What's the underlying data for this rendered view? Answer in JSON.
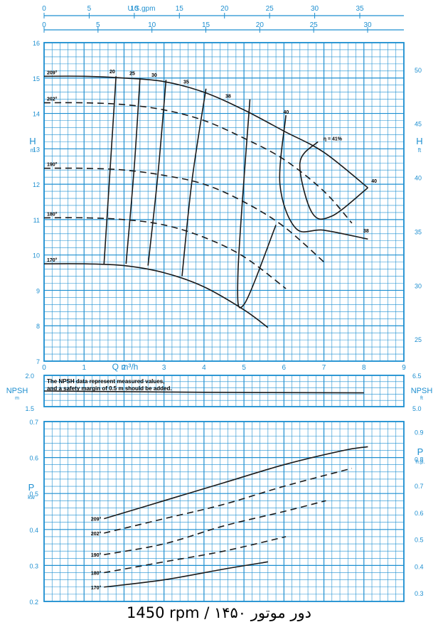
{
  "footer": "1450 rpm / دور موتور ۱۴۵۰",
  "colors": {
    "grid": "#1e8fd0",
    "curve": "#1a1a1a",
    "background": "#ffffff"
  },
  "chart_data": [
    {
      "type": "line",
      "name": "head-capacity",
      "top_axis_label": "U.S.gpm",
      "top_axis_ticks": [
        "0",
        "5",
        "10",
        "15",
        "20",
        "25",
        "30",
        "35"
      ],
      "metric_ticks": [
        "0",
        "5",
        "10",
        "15",
        "20",
        "25",
        "30"
      ],
      "xlabel": "Q m³/h",
      "xticks": [
        "0",
        "1",
        "2",
        "3",
        "4",
        "5",
        "6",
        "7",
        "8",
        "9"
      ],
      "ylabel_left": "H",
      "ylabel_left_unit": "m",
      "ylabel_right": "H",
      "ylabel_right_unit": "ft",
      "yticks_left": [
        "7",
        "8",
        "9",
        "10",
        "11",
        "12",
        "13",
        "14",
        "15",
        "16"
      ],
      "yticks_right": [
        "25",
        "30",
        "35",
        "40",
        "45",
        "50"
      ],
      "xlim": [
        0,
        9
      ],
      "ylim": [
        7,
        16
      ],
      "grid": true,
      "series": [
        {
          "name": "209",
          "style": "solid",
          "x": [
            0,
            1,
            2,
            3,
            4,
            5,
            6,
            7,
            8.1
          ],
          "y": [
            15.05,
            15.05,
            15.0,
            14.9,
            14.6,
            14.1,
            13.5,
            12.9,
            11.9
          ]
        },
        {
          "name": "202",
          "style": "dashed",
          "x": [
            0,
            1,
            2,
            3,
            4,
            5,
            6,
            7,
            7.7
          ],
          "y": [
            14.3,
            14.3,
            14.25,
            14.1,
            13.8,
            13.3,
            12.7,
            11.8,
            10.9
          ]
        },
        {
          "name": "190",
          "style": "dashed",
          "x": [
            0,
            1,
            2,
            3,
            4,
            5,
            6,
            7.05
          ],
          "y": [
            12.45,
            12.45,
            12.4,
            12.25,
            12.0,
            11.5,
            10.8,
            9.75
          ]
        },
        {
          "name": "180",
          "style": "dashed",
          "x": [
            0,
            1,
            2,
            3,
            4,
            5,
            6.05
          ],
          "y": [
            11.05,
            11.05,
            11.0,
            10.85,
            10.5,
            9.95,
            9.05
          ]
        },
        {
          "name": "170",
          "style": "solid",
          "x": [
            0,
            1,
            2,
            3,
            4,
            5,
            5.6
          ],
          "y": [
            9.75,
            9.75,
            9.7,
            9.5,
            9.1,
            8.45,
            7.95
          ]
        }
      ],
      "efficiency_labels": [
        "20",
        "25",
        "30",
        "35",
        "38",
        "40",
        "η = 41%",
        "40",
        "38"
      ],
      "efficiency_curves": [
        {
          "label": "20",
          "x": [
            1.5,
            1.65,
            1.8
          ],
          "y": [
            9.75,
            12.4,
            15.05
          ]
        },
        {
          "label": "25",
          "x": [
            2.05,
            2.25,
            2.4
          ],
          "y": [
            9.75,
            12.4,
            15.0
          ]
        },
        {
          "label": "30",
          "x": [
            2.6,
            2.85,
            3.05
          ],
          "y": [
            9.7,
            12.3,
            14.95
          ]
        },
        {
          "label": "35",
          "x": [
            3.45,
            3.7,
            4.05
          ],
          "y": [
            9.4,
            12.1,
            14.7
          ]
        },
        {
          "label": "38",
          "x": [
            5.8,
            5.0,
            4.85,
            5.15
          ],
          "y": [
            10.85,
            8.6,
            9.5,
            14.4
          ]
        },
        {
          "label": "40",
          "x": [
            8.1,
            7.0,
            6.3,
            5.9,
            6.05
          ],
          "y": [
            10.45,
            10.7,
            10.75,
            12.0,
            13.95
          ]
        },
        {
          "label": "η = 41%",
          "x": [
            8.1,
            7.2,
            6.7,
            6.4,
            6.85
          ],
          "y": [
            11.9,
            11.1,
            11.2,
            12.6,
            13.2
          ]
        }
      ]
    },
    {
      "type": "line",
      "name": "npsh",
      "ylabel_left": "NPSH",
      "ylabel_left_unit": "m",
      "ylabel_right": "NPSH",
      "ylabel_right_unit": "ft",
      "yticks_left": [
        "1.5",
        "2.0"
      ],
      "yticks_right": [
        "5.0",
        "6.5"
      ],
      "note": [
        "The NPSH data represent measured values,",
        "and a safety margin of 0.5 m should be added."
      ],
      "series": [
        {
          "name": "NPSH",
          "style": "solid",
          "x": [
            0,
            4,
            8
          ],
          "y": [
            1.75,
            1.73,
            1.72
          ]
        }
      ],
      "xlim": [
        0,
        9
      ],
      "ylim": [
        1.5,
        2.0
      ],
      "grid": true
    },
    {
      "type": "line",
      "name": "power",
      "ylabel_left": "P",
      "ylabel_left_unit": "kw",
      "ylabel_right": "P",
      "ylabel_right_unit": "h.p.",
      "yticks_left": [
        "0.2",
        "0.3",
        "0.4",
        "0.5",
        "0.6",
        "0.7"
      ],
      "yticks_right": [
        "0.3",
        "0.4",
        "0.5",
        "0.6",
        "0.7",
        "0.8",
        "0.9"
      ],
      "xlim": [
        0,
        9
      ],
      "ylim": [
        0.2,
        0.7
      ],
      "grid": true,
      "series": [
        {
          "name": "209",
          "style": "solid",
          "x": [
            1.5,
            3,
            4.5,
            6,
            7.5,
            8.1
          ],
          "y": [
            0.43,
            0.48,
            0.53,
            0.58,
            0.62,
            0.63
          ]
        },
        {
          "name": "202",
          "style": "dashed",
          "x": [
            1.5,
            3,
            4.5,
            6,
            7.7
          ],
          "y": [
            0.39,
            0.43,
            0.47,
            0.52,
            0.57
          ]
        },
        {
          "name": "190",
          "style": "dashed",
          "x": [
            1.5,
            3,
            4.5,
            6,
            7.05
          ],
          "y": [
            0.33,
            0.36,
            0.41,
            0.45,
            0.48
          ]
        },
        {
          "name": "180",
          "style": "dashed",
          "x": [
            1.5,
            3,
            4.5,
            6.05
          ],
          "y": [
            0.28,
            0.31,
            0.34,
            0.38
          ]
        },
        {
          "name": "170",
          "style": "solid",
          "x": [
            1.5,
            3,
            4.5,
            5.6
          ],
          "y": [
            0.24,
            0.26,
            0.29,
            0.31
          ]
        }
      ]
    }
  ]
}
